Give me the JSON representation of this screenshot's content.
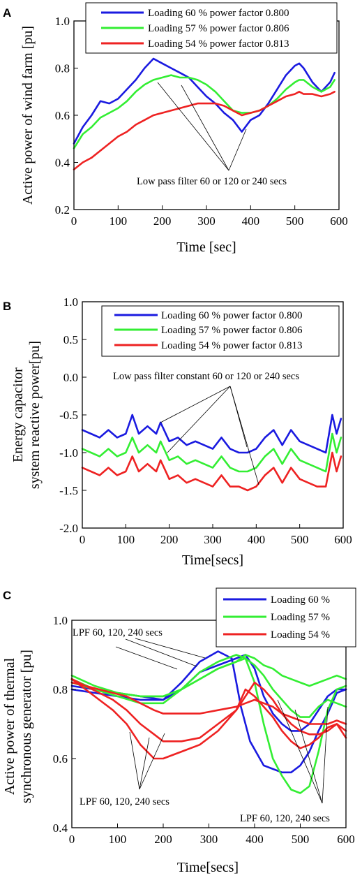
{
  "chart_data": [
    {
      "panel": "A",
      "type": "line",
      "xlabel": "Time [sec]",
      "ylabel": "Active power of wind farm [pu]",
      "xlim": [
        0,
        600
      ],
      "ylim": [
        0.2,
        1.0
      ],
      "xticks": [
        "0",
        "100",
        "200",
        "300",
        "400",
        "500",
        "600"
      ],
      "yticks": [
        "0.2",
        "0.4",
        "0.6",
        "0.8",
        "1.0"
      ],
      "legend_position": "top-right",
      "annotation": "Low pass filter 60 or 120 or 240 secs",
      "series": [
        {
          "name": "Loading 60 % power factor 0.800",
          "color": "#1a1ae0",
          "x": [
            0,
            20,
            40,
            60,
            80,
            100,
            120,
            140,
            160,
            180,
            200,
            220,
            240,
            260,
            280,
            300,
            320,
            340,
            360,
            380,
            400,
            420,
            440,
            460,
            480,
            500,
            510,
            520,
            540,
            560,
            580,
            590
          ],
          "y": [
            0.48,
            0.55,
            0.6,
            0.66,
            0.65,
            0.67,
            0.71,
            0.75,
            0.8,
            0.84,
            0.82,
            0.8,
            0.78,
            0.76,
            0.72,
            0.68,
            0.65,
            0.61,
            0.58,
            0.53,
            0.58,
            0.6,
            0.65,
            0.71,
            0.77,
            0.81,
            0.82,
            0.8,
            0.74,
            0.7,
            0.74,
            0.78
          ]
        },
        {
          "name": "Loading 57 % power factor 0.806",
          "color": "#33ee33",
          "x": [
            0,
            20,
            40,
            60,
            80,
            100,
            120,
            140,
            160,
            180,
            200,
            220,
            240,
            260,
            280,
            300,
            320,
            340,
            360,
            380,
            400,
            420,
            440,
            460,
            480,
            500,
            510,
            520,
            540,
            560,
            580,
            590
          ],
          "y": [
            0.46,
            0.52,
            0.55,
            0.59,
            0.61,
            0.63,
            0.66,
            0.7,
            0.73,
            0.75,
            0.76,
            0.77,
            0.76,
            0.76,
            0.75,
            0.73,
            0.7,
            0.66,
            0.62,
            0.61,
            0.61,
            0.62,
            0.64,
            0.67,
            0.71,
            0.74,
            0.75,
            0.75,
            0.72,
            0.7,
            0.72,
            0.75
          ]
        },
        {
          "name": "Loading 54 % power factor 0.813",
          "color": "#ee2222",
          "x": [
            0,
            20,
            40,
            60,
            80,
            100,
            120,
            140,
            160,
            180,
            200,
            220,
            240,
            260,
            280,
            300,
            320,
            340,
            360,
            380,
            400,
            420,
            440,
            460,
            480,
            500,
            510,
            520,
            540,
            560,
            580,
            590
          ],
          "y": [
            0.37,
            0.4,
            0.42,
            0.45,
            0.48,
            0.51,
            0.53,
            0.56,
            0.58,
            0.6,
            0.61,
            0.62,
            0.63,
            0.64,
            0.65,
            0.65,
            0.65,
            0.64,
            0.62,
            0.6,
            0.61,
            0.62,
            0.64,
            0.66,
            0.68,
            0.69,
            0.7,
            0.69,
            0.69,
            0.68,
            0.69,
            0.7
          ]
        }
      ]
    },
    {
      "panel": "B",
      "type": "line",
      "xlabel": "Time[secs]",
      "ylabel": "Energy capacitor system reactive power[pu]",
      "xlim": [
        0,
        600
      ],
      "ylim": [
        -2.0,
        1.0
      ],
      "xticks": [
        "0",
        "100",
        "200",
        "300",
        "400",
        "500",
        "600"
      ],
      "yticks": [
        "-2.0",
        "-1.5",
        "-1.0",
        "-0.5",
        "0.0",
        "0.5",
        "1.0"
      ],
      "legend_position": "top-right",
      "annotation": "Low pass filter constant 60 or 120 or 240 secs",
      "series": [
        {
          "name": "Loading 60 % power factor 0.800",
          "color": "#1a1ae0",
          "x": [
            0,
            20,
            40,
            60,
            80,
            100,
            115,
            130,
            150,
            170,
            180,
            200,
            220,
            240,
            260,
            280,
            300,
            320,
            340,
            360,
            380,
            400,
            420,
            440,
            460,
            480,
            500,
            520,
            540,
            560,
            575,
            585,
            595
          ],
          "y": [
            -0.7,
            -0.75,
            -0.8,
            -0.7,
            -0.8,
            -0.75,
            -0.5,
            -0.75,
            -0.65,
            -0.75,
            -0.6,
            -0.85,
            -0.8,
            -0.9,
            -0.85,
            -0.9,
            -0.95,
            -0.8,
            -0.95,
            -1.0,
            -1.0,
            -0.95,
            -0.8,
            -0.7,
            -0.9,
            -0.7,
            -0.85,
            -0.9,
            -0.95,
            -1.0,
            -0.5,
            -0.75,
            -0.55
          ]
        },
        {
          "name": "Loading 57 % power factor 0.806",
          "color": "#33ee33",
          "x": [
            0,
            20,
            40,
            60,
            80,
            100,
            115,
            130,
            150,
            170,
            180,
            200,
            220,
            240,
            260,
            280,
            300,
            320,
            340,
            360,
            380,
            400,
            420,
            440,
            460,
            480,
            500,
            520,
            540,
            560,
            575,
            585,
            595
          ],
          "y": [
            -0.95,
            -1.0,
            -1.05,
            -0.95,
            -1.05,
            -1.0,
            -0.8,
            -1.0,
            -0.9,
            -1.0,
            -0.85,
            -1.1,
            -1.05,
            -1.15,
            -1.1,
            -1.15,
            -1.2,
            -1.05,
            -1.2,
            -1.25,
            -1.25,
            -1.2,
            -1.05,
            -0.95,
            -1.15,
            -0.95,
            -1.1,
            -1.15,
            -1.2,
            -1.25,
            -0.75,
            -1.0,
            -0.8
          ]
        },
        {
          "name": "Loading 54 % power factor 0.813",
          "color": "#ee2222",
          "x": [
            0,
            20,
            40,
            60,
            80,
            100,
            115,
            130,
            150,
            170,
            180,
            200,
            220,
            240,
            260,
            280,
            300,
            320,
            340,
            360,
            380,
            400,
            420,
            440,
            460,
            480,
            500,
            520,
            540,
            560,
            575,
            585,
            595
          ],
          "y": [
            -1.2,
            -1.25,
            -1.3,
            -1.2,
            -1.3,
            -1.25,
            -1.05,
            -1.25,
            -1.15,
            -1.25,
            -1.1,
            -1.35,
            -1.3,
            -1.4,
            -1.35,
            -1.4,
            -1.45,
            -1.3,
            -1.45,
            -1.45,
            -1.5,
            -1.45,
            -1.3,
            -1.2,
            -1.4,
            -1.2,
            -1.35,
            -1.4,
            -1.45,
            -1.45,
            -1.0,
            -1.25,
            -1.05
          ]
        }
      ]
    },
    {
      "panel": "C",
      "type": "line",
      "xlabel": "Time[secs]",
      "ylabel": "Active power of thermal synchronous generator [pu]",
      "xlim": [
        0,
        600
      ],
      "ylim": [
        0.4,
        1.0
      ],
      "xticks": [
        "0",
        "100",
        "200",
        "300",
        "400",
        "500",
        "600"
      ],
      "yticks": [
        "0.4",
        "0.6",
        "0.8",
        "1.0"
      ],
      "legend_position": "top-right",
      "annotations": [
        "LPF 60, 120, 240 secs",
        "LPF 60, 120, 240 secs",
        "LPF 60, 120, 240 secs"
      ],
      "series": [
        {
          "name": "Loading 60 %",
          "color": "#1a1ae0",
          "lines": [
            {
              "x": [
                0,
                50,
                100,
                150,
                200,
                240,
                280,
                320,
                350,
                370,
                390,
                420,
                440,
                460,
                480,
                500,
                520,
                540,
                560,
                580,
                600
              ],
              "y": [
                0.8,
                0.79,
                0.78,
                0.77,
                0.77,
                0.82,
                0.88,
                0.91,
                0.89,
                0.75,
                0.65,
                0.58,
                0.57,
                0.56,
                0.56,
                0.58,
                0.62,
                0.68,
                0.73,
                0.79,
                0.8
              ]
            },
            {
              "x": [
                0,
                50,
                100,
                150,
                200,
                240,
                280,
                320,
                360,
                380,
                400,
                420,
                440,
                460,
                480,
                500,
                520,
                540,
                560,
                580,
                600
              ],
              "y": [
                0.81,
                0.8,
                0.79,
                0.78,
                0.77,
                0.8,
                0.85,
                0.87,
                0.89,
                0.9,
                0.86,
                0.78,
                0.73,
                0.7,
                0.68,
                0.68,
                0.7,
                0.74,
                0.78,
                0.8,
                0.8
              ]
            }
          ]
        },
        {
          "name": "Loading 57 %",
          "color": "#33ee33",
          "lines": [
            {
              "x": [
                0,
                50,
                100,
                150,
                200,
                240,
                280,
                320,
                360,
                380,
                400,
                420,
                440,
                460,
                480,
                500,
                520,
                540,
                560,
                580,
                600
              ],
              "y": [
                0.82,
                0.8,
                0.78,
                0.76,
                0.76,
                0.8,
                0.85,
                0.88,
                0.9,
                0.89,
                0.82,
                0.7,
                0.6,
                0.55,
                0.51,
                0.5,
                0.52,
                0.62,
                0.74,
                0.8,
                0.81
              ]
            },
            {
              "x": [
                0,
                50,
                100,
                150,
                200,
                240,
                280,
                320,
                360,
                380,
                400,
                420,
                440,
                460,
                480,
                500,
                520,
                540,
                560,
                580,
                600
              ],
              "y": [
                0.83,
                0.8,
                0.79,
                0.78,
                0.78,
                0.8,
                0.83,
                0.86,
                0.88,
                0.89,
                0.87,
                0.84,
                0.8,
                0.77,
                0.74,
                0.72,
                0.72,
                0.75,
                0.77,
                0.76,
                0.75
              ]
            },
            {
              "x": [
                0,
                50,
                100,
                150,
                200,
                240,
                280,
                320,
                360,
                380,
                400,
                420,
                440,
                460,
                480,
                500,
                520,
                540,
                560,
                580,
                600
              ],
              "y": [
                0.84,
                0.81,
                0.79,
                0.78,
                0.78,
                0.8,
                0.83,
                0.86,
                0.88,
                0.9,
                0.89,
                0.87,
                0.86,
                0.84,
                0.83,
                0.82,
                0.81,
                0.82,
                0.83,
                0.84,
                0.83
              ]
            }
          ]
        },
        {
          "name": "Loading 54 %",
          "color": "#ee2222",
          "lines": [
            {
              "x": [
                0,
                30,
                60,
                90,
                120,
                150,
                180,
                200,
                240,
                280,
                320,
                360,
                380,
                400,
                420,
                440,
                460,
                480,
                500,
                520,
                540,
                560,
                580,
                600
              ],
              "y": [
                0.83,
                0.8,
                0.77,
                0.74,
                0.7,
                0.64,
                0.6,
                0.6,
                0.62,
                0.64,
                0.68,
                0.74,
                0.8,
                0.78,
                0.75,
                0.72,
                0.68,
                0.65,
                0.63,
                0.64,
                0.66,
                0.69,
                0.7,
                0.66
              ]
            },
            {
              "x": [
                0,
                30,
                60,
                90,
                120,
                150,
                180,
                200,
                240,
                280,
                320,
                360,
                380,
                400,
                420,
                440,
                460,
                480,
                500,
                520,
                540,
                560,
                580,
                600
              ],
              "y": [
                0.83,
                0.81,
                0.79,
                0.77,
                0.74,
                0.7,
                0.67,
                0.65,
                0.65,
                0.66,
                0.7,
                0.74,
                0.78,
                0.82,
                0.8,
                0.77,
                0.73,
                0.7,
                0.68,
                0.67,
                0.67,
                0.68,
                0.7,
                0.68
              ]
            },
            {
              "x": [
                0,
                30,
                60,
                90,
                120,
                150,
                180,
                200,
                240,
                280,
                320,
                360,
                380,
                400,
                420,
                440,
                460,
                480,
                500,
                520,
                540,
                560,
                580,
                600
              ],
              "y": [
                0.82,
                0.81,
                0.8,
                0.79,
                0.78,
                0.76,
                0.74,
                0.73,
                0.73,
                0.73,
                0.74,
                0.75,
                0.76,
                0.77,
                0.76,
                0.75,
                0.73,
                0.72,
                0.71,
                0.7,
                0.7,
                0.7,
                0.71,
                0.7
              ]
            }
          ]
        }
      ]
    }
  ]
}
